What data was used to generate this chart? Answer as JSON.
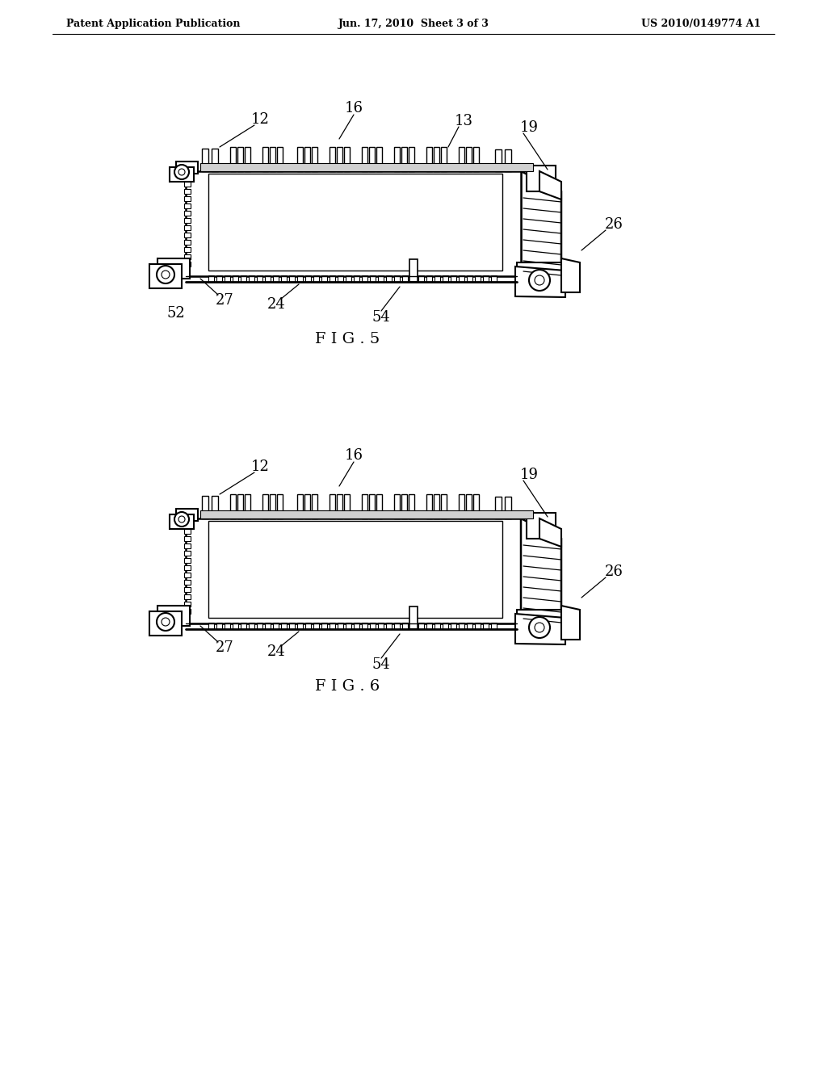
{
  "background_color": "#ffffff",
  "header_left": "Patent Application Publication",
  "header_center": "Jun. 17, 2010  Sheet 3 of 3",
  "header_right": "US 2010/0149774 A1",
  "fig5_label": "F I G . 5",
  "fig6_label": "F I G . 6"
}
